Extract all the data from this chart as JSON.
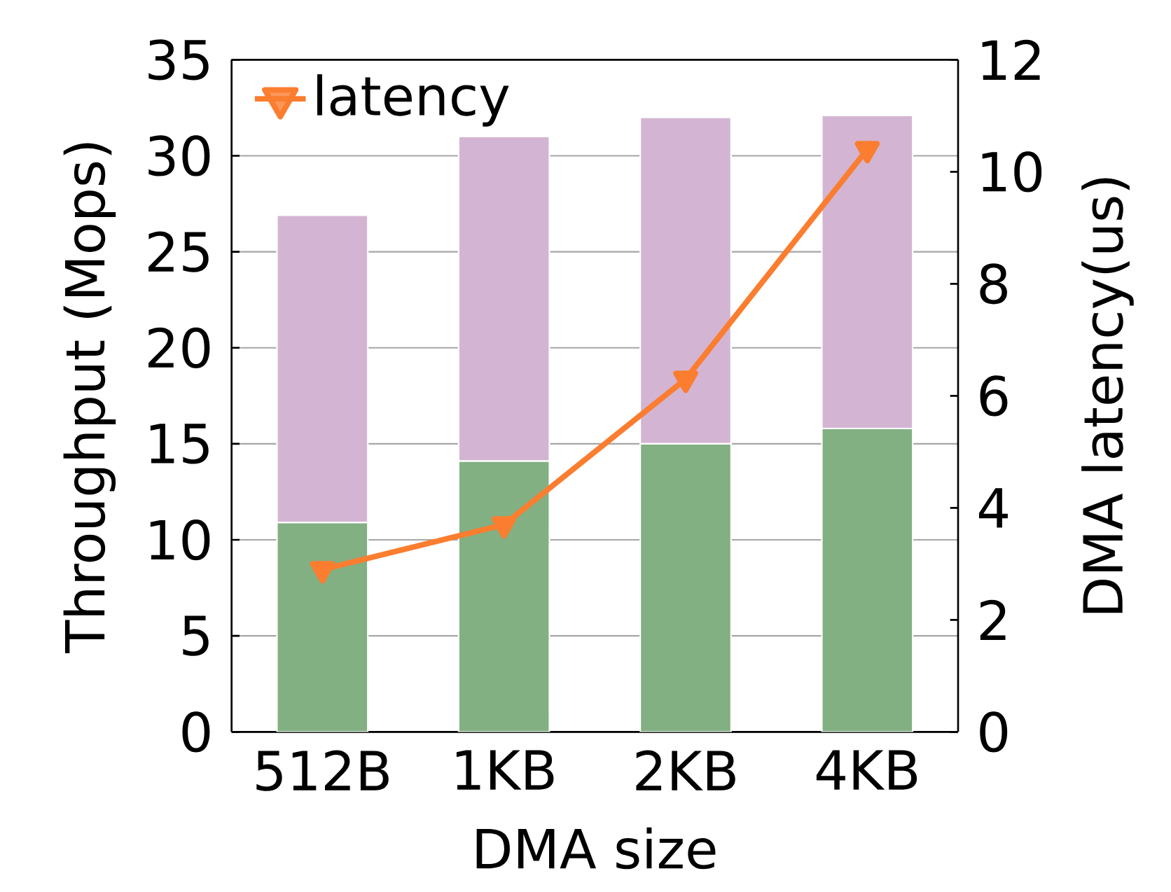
{
  "chart_data": {
    "type": "bar",
    "stacked": true,
    "xlabel": "DMA size",
    "ylabel": "Throughput (Mops)",
    "y2label": "DMA latency(us)",
    "categories": [
      "512B",
      "1KB",
      "2KB",
      "4KB"
    ],
    "series": [
      {
        "color": "#82b083",
        "values": [
          10.9,
          14.1,
          15.0,
          15.8
        ]
      },
      {
        "color": "#d3b5d3",
        "values": [
          16.0,
          16.9,
          17.0,
          16.3
        ]
      },
      {
        "name": "latency",
        "type": "line",
        "axis": "y2",
        "color": "#fb7d2f",
        "marker": "triangle",
        "values": [
          2.9,
          3.7,
          6.3,
          10.4
        ]
      }
    ],
    "ylim": [
      0,
      35
    ],
    "yticks": [
      0,
      5,
      10,
      15,
      20,
      25,
      30,
      35
    ],
    "y2lim": [
      0,
      12
    ],
    "y2ticks": [
      0,
      2,
      4,
      6,
      8,
      10,
      12
    ],
    "grid": "y",
    "legend": "top left"
  }
}
